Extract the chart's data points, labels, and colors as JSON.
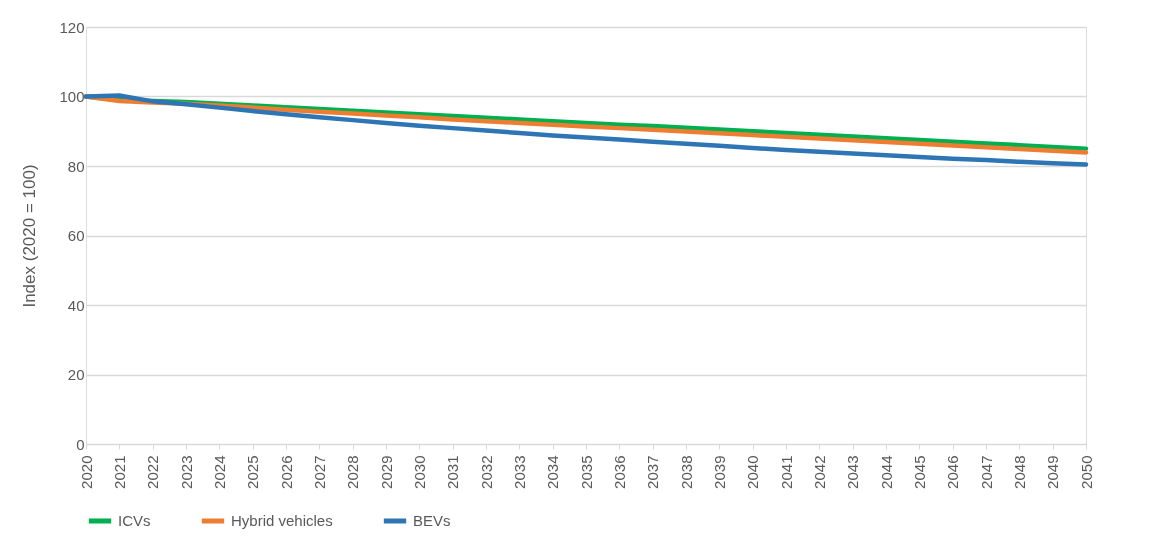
{
  "chart_data": {
    "type": "line",
    "ylabel": "Index (2020 = 100)",
    "categories": [
      "2020",
      "2021",
      "2022",
      "2023",
      "2024",
      "2025",
      "2026",
      "2027",
      "2028",
      "2029",
      "2030",
      "2031",
      "2032",
      "2033",
      "2034",
      "2035",
      "2036",
      "2037",
      "2038",
      "2039",
      "2040",
      "2041",
      "2042",
      "2043",
      "2044",
      "2045",
      "2046",
      "2047",
      "2048",
      "2049",
      "2050"
    ],
    "series": [
      {
        "name": "ICVs",
        "color": "#00b050",
        "values": [
          100,
          99.0,
          98.7,
          98.4,
          97.9,
          97.4,
          96.9,
          96.4,
          95.9,
          95.4,
          94.9,
          94.4,
          93.9,
          93.4,
          92.9,
          92.4,
          91.9,
          91.5,
          91.0,
          90.5,
          90.0,
          89.5,
          89.0,
          88.5,
          88.0,
          87.5,
          87.0,
          86.5,
          86.0,
          85.5,
          85.0
        ]
      },
      {
        "name": "Hybrid vehicles",
        "color": "#ed7d31",
        "values": [
          100,
          98.7,
          98.3,
          97.9,
          97.4,
          96.8,
          96.2,
          95.6,
          95.1,
          94.5,
          94.0,
          93.4,
          92.9,
          92.4,
          91.9,
          91.4,
          90.9,
          90.4,
          89.9,
          89.4,
          88.9,
          88.4,
          87.9,
          87.4,
          86.9,
          86.4,
          85.9,
          85.4,
          84.9,
          84.4,
          83.9
        ]
      },
      {
        "name": "BEVs",
        "color": "#2e75b6",
        "values": [
          100,
          100.3,
          98.6,
          97.8,
          96.8,
          95.8,
          94.9,
          94.0,
          93.2,
          92.4,
          91.6,
          90.9,
          90.2,
          89.5,
          88.8,
          88.2,
          87.6,
          87.0,
          86.4,
          85.8,
          85.2,
          84.6,
          84.1,
          83.6,
          83.1,
          82.6,
          82.1,
          81.7,
          81.2,
          80.8,
          80.4
        ]
      }
    ],
    "ylim": [
      0,
      120
    ],
    "yticks": [
      0,
      20,
      40,
      60,
      80,
      100,
      120
    ],
    "grid": "y",
    "legend": "bottom",
    "marker": "none",
    "line_style": "solid"
  }
}
